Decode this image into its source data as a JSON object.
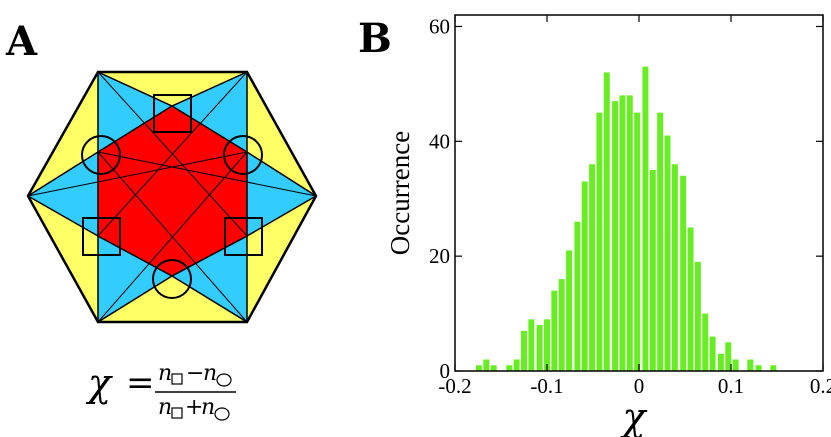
{
  "panels": {
    "a_label": "A",
    "b_label": "B"
  },
  "formula": {
    "lhs": "χ",
    "equals": "=",
    "num_left": "n",
    "minus": "−",
    "num_right": "n",
    "den_left": "n",
    "plus": "+",
    "den_right": "n"
  },
  "colors": {
    "yellow": "#ffff66",
    "cyan": "#33ccff",
    "red": "#ff0000",
    "bar": "#66ee22"
  },
  "chart_data": {
    "type": "bar",
    "title": "",
    "xlabel": "χ",
    "ylabel": "Occurrence",
    "xlim": [
      -0.2,
      0.2
    ],
    "ylim": [
      0,
      62
    ],
    "xticks": [
      -0.2,
      -0.1,
      0.0,
      0.1,
      0.2
    ],
    "xtick_labels": [
      "-0.2",
      "-0.1",
      "0",
      "0.1",
      "0.2"
    ],
    "yticks": [
      0,
      20,
      40,
      60
    ],
    "ytick_labels": [
      "0",
      "20",
      "40",
      "60"
    ],
    "bin_width": 0.0082,
    "x": [
      -0.174,
      -0.166,
      -0.158,
      -0.149,
      -0.141,
      -0.133,
      -0.125,
      -0.117,
      -0.108,
      -0.1,
      -0.092,
      -0.084,
      -0.076,
      -0.067,
      -0.059,
      -0.051,
      -0.043,
      -0.035,
      -0.026,
      -0.018,
      -0.01,
      -0.002,
      0.007,
      0.015,
      0.023,
      0.031,
      0.039,
      0.048,
      0.056,
      0.064,
      0.072,
      0.08,
      0.089,
      0.097,
      0.105,
      0.113,
      0.121,
      0.13,
      0.138,
      0.146
    ],
    "values": [
      1,
      2,
      1,
      0,
      1,
      2,
      7,
      9,
      8,
      9,
      14,
      16,
      21,
      26,
      33,
      36,
      45,
      52,
      47,
      48,
      48,
      45,
      53,
      35,
      45,
      41,
      36,
      34,
      25,
      19,
      10,
      6,
      3,
      5,
      2,
      0,
      2,
      1,
      0,
      1
    ]
  }
}
